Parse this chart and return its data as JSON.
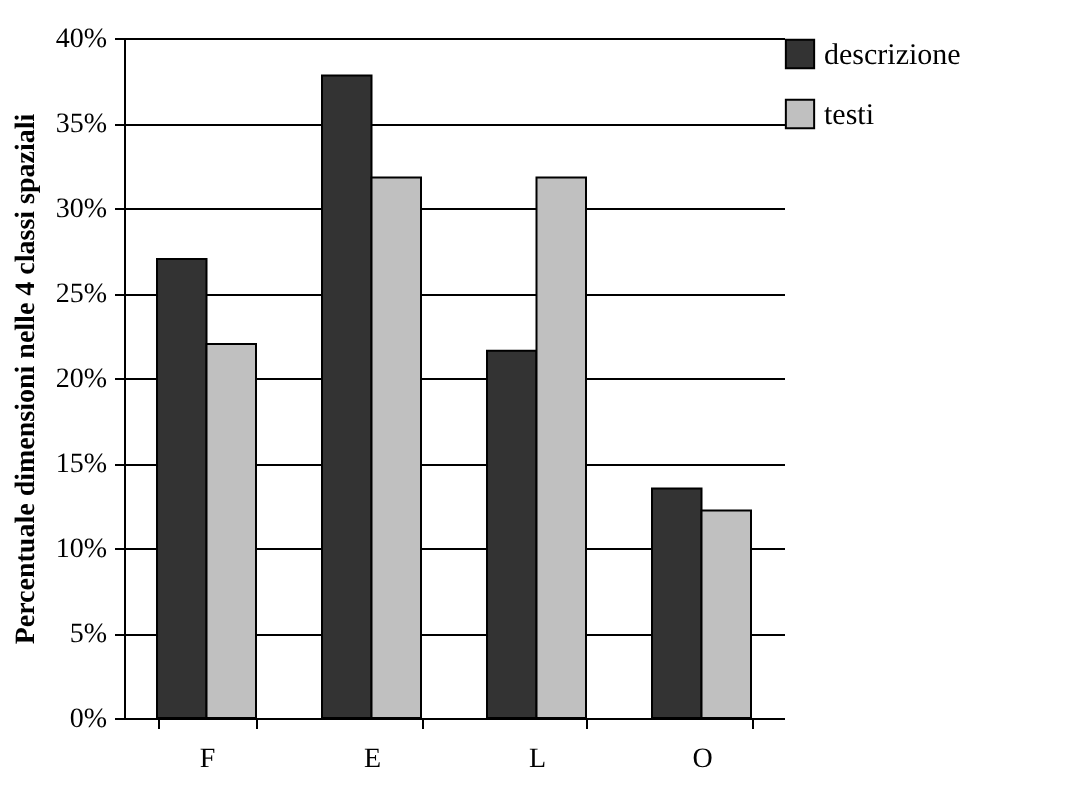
{
  "chart_data": {
    "type": "bar",
    "ylabel": "Percentuale dimensioni nelle 4 classi spaziali",
    "categories": [
      "F",
      "E",
      "L",
      "O"
    ],
    "series": [
      {
        "name": "descrizione",
        "color": "#333333",
        "values": [
          27.0,
          37.8,
          21.6,
          13.5
        ]
      },
      {
        "name": "testi",
        "color": "#c0c0c0",
        "values": [
          22.0,
          31.8,
          31.8,
          12.2
        ]
      }
    ],
    "ylim": [
      0,
      40
    ],
    "yticks": [
      {
        "value": 0,
        "label": "0%"
      },
      {
        "value": 5,
        "label": "5%"
      },
      {
        "value": 10,
        "label": "10%"
      },
      {
        "value": 15,
        "label": "15%"
      },
      {
        "value": 20,
        "label": "20%"
      },
      {
        "value": 25,
        "label": "25%"
      },
      {
        "value": 30,
        "label": "30%"
      },
      {
        "value": 35,
        "label": "35%"
      },
      {
        "value": 40,
        "label": "40%"
      }
    ],
    "grid": "y",
    "legend": "top right"
  }
}
